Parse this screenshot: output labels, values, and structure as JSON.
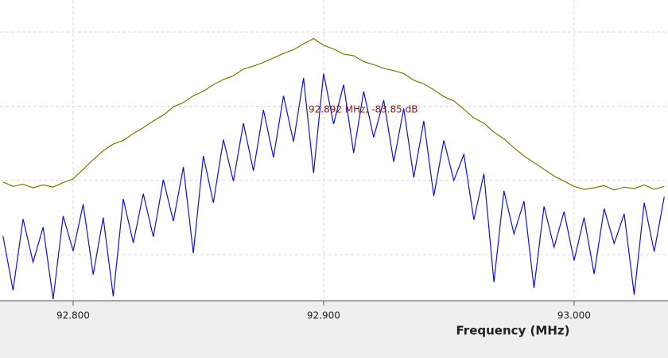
{
  "chart_data": {
    "type": "line",
    "xlabel": "Frequency (MHz)",
    "annotation": "92.892 MHz, -83.85 dB",
    "annotation_color": "#8b1a1a",
    "x": [
      92.772,
      92.776,
      92.78,
      92.784,
      92.788,
      92.792,
      92.796,
      92.8,
      92.804,
      92.808,
      92.812,
      92.816,
      92.82,
      92.824,
      92.828,
      92.832,
      92.836,
      92.84,
      92.844,
      92.848,
      92.852,
      92.856,
      92.86,
      92.864,
      92.868,
      92.872,
      92.876,
      92.88,
      92.884,
      92.888,
      92.892,
      92.896,
      92.9,
      92.904,
      92.908,
      92.912,
      92.916,
      92.92,
      92.924,
      92.928,
      92.932,
      92.936,
      92.94,
      92.944,
      92.948,
      92.952,
      92.956,
      92.96,
      92.964,
      92.968,
      92.972,
      92.976,
      92.98,
      92.984,
      92.988,
      92.992,
      92.996,
      93.0,
      93.004,
      93.008,
      93.012,
      93.016,
      93.02,
      93.024,
      93.028,
      93.032,
      93.036
    ],
    "series": [
      {
        "color": "#7d7800",
        "values": [
          -90.2,
          -90.8,
          -90.5,
          -91.0,
          -90.6,
          -90.9,
          -90.3,
          -89.8,
          -88.5,
          -87.2,
          -86.0,
          -85.1,
          -84.6,
          -83.7,
          -82.9,
          -82.0,
          -81.2,
          -80.1,
          -79.5,
          -78.6,
          -78.0,
          -77.1,
          -76.4,
          -75.9,
          -75.0,
          -74.6,
          -74.1,
          -73.5,
          -72.9,
          -72.4,
          -71.6,
          -70.9,
          -71.8,
          -72.3,
          -73.0,
          -73.2,
          -74.0,
          -74.4,
          -74.9,
          -75.2,
          -75.6,
          -76.5,
          -77.0,
          -77.8,
          -78.7,
          -79.3,
          -80.4,
          -81.6,
          -82.3,
          -83.5,
          -84.4,
          -85.6,
          -86.7,
          -87.6,
          -88.5,
          -89.4,
          -90.1,
          -90.8,
          -91.2,
          -91.0,
          -90.7,
          -91.3,
          -90.9,
          -91.1,
          -90.6,
          -91.2,
          -90.8
        ]
      },
      {
        "color": "#1010d8",
        "values": [
          -97.5,
          -104.8,
          -95.2,
          -101.0,
          -96.3,
          -106.0,
          -94.8,
          -99.5,
          -93.2,
          -102.7,
          -95.0,
          -105.6,
          -92.5,
          -98.4,
          -91.8,
          -97.6,
          -89.9,
          -95.5,
          -88.2,
          -99.8,
          -86.7,
          -93.0,
          -84.5,
          -90.1,
          -82.3,
          -88.7,
          -80.5,
          -86.9,
          -78.6,
          -84.8,
          -76.2,
          -89.0,
          -75.6,
          -82.4,
          -77.1,
          -86.3,
          -78.0,
          -84.2,
          -79.2,
          -87.5,
          -80.3,
          -89.6,
          -82.0,
          -92.1,
          -84.6,
          -90.0,
          -86.5,
          -95.3,
          -89.1,
          -103.7,
          -91.4,
          -97.2,
          -92.8,
          -104.5,
          -93.5,
          -99.0,
          -94.2,
          -100.8,
          -95.0,
          -102.6,
          -93.8,
          -98.5,
          -94.5,
          -105.4,
          -93.0,
          -99.6,
          -92.2
        ]
      }
    ],
    "xlim": [
      92.7708,
      93.0375
    ],
    "xticks": [
      {
        "value": 92.8,
        "label": "92.800"
      },
      {
        "value": 92.9,
        "label": "92.900"
      },
      {
        "value": 93.0,
        "label": "93.000"
      }
    ],
    "ylim": [
      -106.2,
      -65.7
    ],
    "yticks": [
      -100,
      -90,
      -80,
      -70
    ],
    "grid": true
  }
}
